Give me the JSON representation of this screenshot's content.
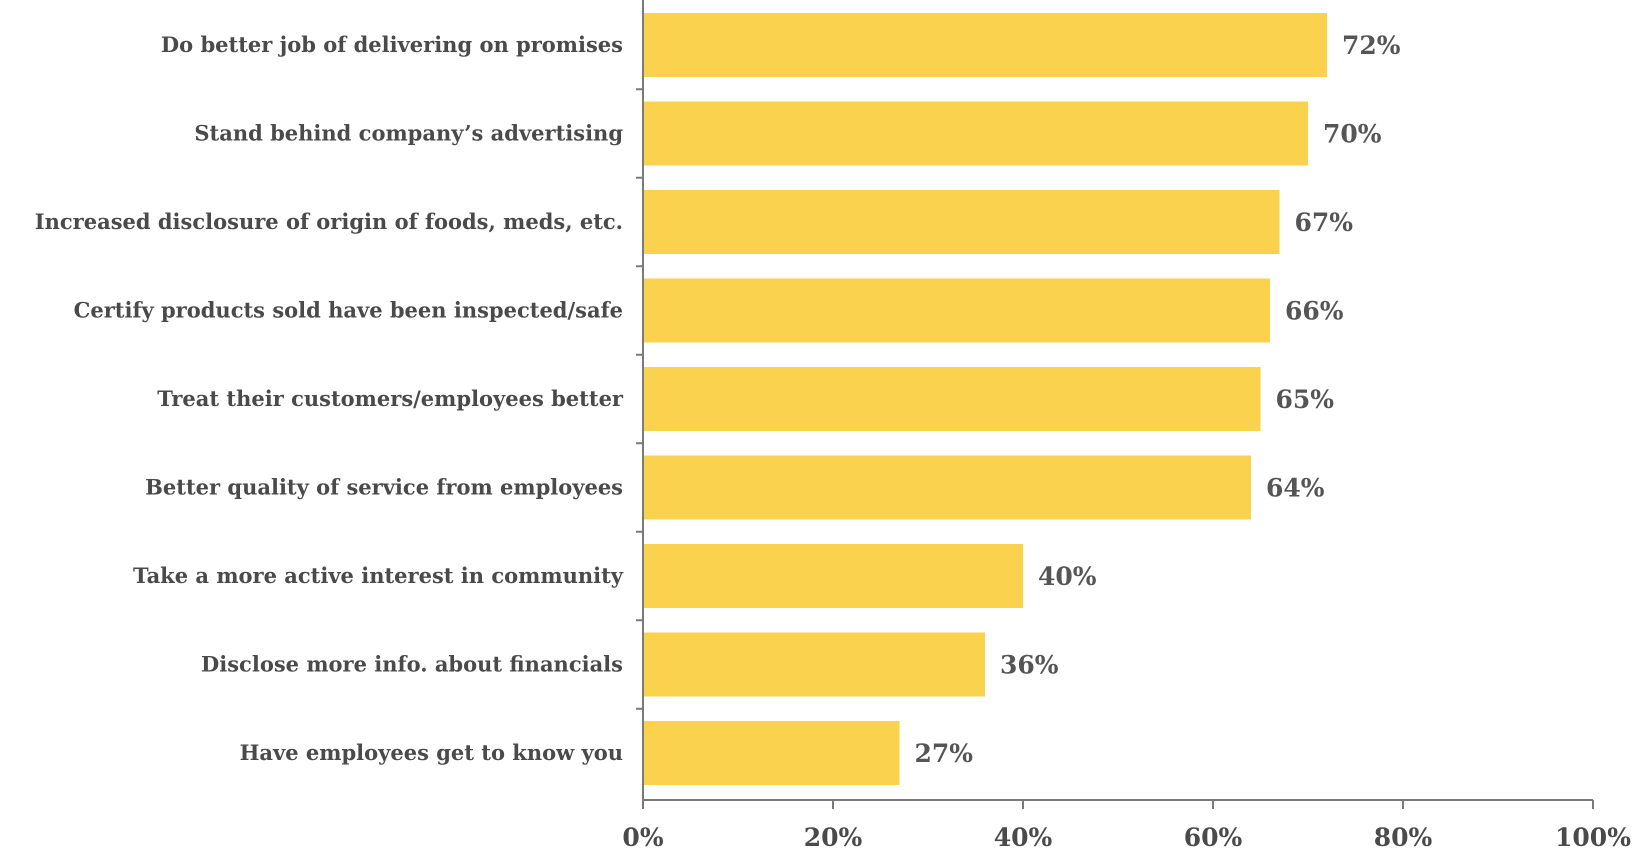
{
  "chart_data": {
    "type": "bar",
    "orientation": "horizontal",
    "categories": [
      "Do better job of delivering on promises",
      "Stand behind company’s advertising",
      "Increased disclosure of origin of foods, meds, etc.",
      "Certify products sold have been inspected/safe",
      "Treat their customers/employees better",
      "Better quality of service from employees",
      "Take a more active interest in community",
      "Disclose more info. about financials",
      "Have employees get to know you"
    ],
    "values": [
      72,
      70,
      67,
      66,
      65,
      64,
      40,
      36,
      27
    ],
    "value_labels": [
      "72%",
      "70%",
      "67%",
      "66%",
      "65%",
      "64%",
      "40%",
      "36%",
      "27%"
    ],
    "x_ticks": [
      "0%",
      "20%",
      "40%",
      "60%",
      "80%",
      "100%"
    ],
    "xlim": [
      0,
      100
    ],
    "bar_color": "#fbd24e",
    "grid": false,
    "legend": "none",
    "title": "",
    "xlabel": "",
    "ylabel": ""
  }
}
